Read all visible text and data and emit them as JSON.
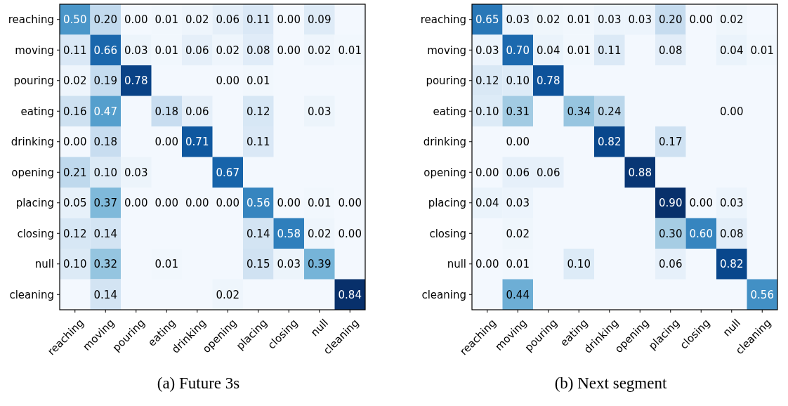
{
  "chart_data": [
    {
      "type": "heatmap",
      "title": "(a) Future 3s",
      "categories": [
        "reaching",
        "moving",
        "pouring",
        "eating",
        "drinking",
        "opening",
        "placing",
        "closing",
        "null",
        "cleaning"
      ],
      "y_categories": [
        "reaching",
        "moving",
        "pouring",
        "eating",
        "drinking",
        "opening",
        "placing",
        "closing",
        "null",
        "cleaning"
      ],
      "cells": [
        [
          0.5,
          0.2,
          0.0,
          0.01,
          0.02,
          0.06,
          0.11,
          0.0,
          0.09,
          null
        ],
        [
          0.11,
          0.66,
          0.03,
          0.01,
          0.06,
          0.02,
          0.08,
          0.0,
          0.02,
          0.01
        ],
        [
          0.02,
          0.19,
          0.78,
          null,
          null,
          0.0,
          0.01,
          null,
          null,
          null
        ],
        [
          0.16,
          0.47,
          null,
          0.18,
          0.06,
          null,
          0.12,
          null,
          0.03,
          null
        ],
        [
          0.0,
          0.18,
          null,
          0.0,
          0.71,
          null,
          0.11,
          null,
          null,
          null
        ],
        [
          0.21,
          0.1,
          0.03,
          null,
          null,
          0.67,
          null,
          null,
          null,
          null
        ],
        [
          0.05,
          0.37,
          0.0,
          0.0,
          0.0,
          0.0,
          0.56,
          0.0,
          0.01,
          0.0
        ],
        [
          0.12,
          0.14,
          null,
          null,
          null,
          null,
          0.14,
          0.58,
          0.02,
          0.0
        ],
        [
          0.1,
          0.32,
          null,
          0.01,
          null,
          null,
          0.15,
          0.03,
          0.39,
          null
        ],
        [
          null,
          0.14,
          null,
          null,
          null,
          0.02,
          null,
          null,
          null,
          0.84
        ]
      ],
      "cell_labels": [
        [
          "0.50",
          "0.20",
          "0.00",
          "0.01",
          "0.02",
          "0.06",
          "0.11",
          "0.00",
          "0.09",
          null
        ],
        [
          "0.11",
          "0.66",
          "0.03",
          "0.01",
          "0.06",
          "0.02",
          "0.08",
          "0.00",
          "0.02",
          "0.01"
        ],
        [
          "0.02",
          "0.19",
          "0.78",
          null,
          null,
          "0.00",
          "0.01",
          null,
          null,
          null
        ],
        [
          "0.16",
          "0.47",
          null,
          "0.18",
          "0.06",
          null,
          "0.12",
          null,
          "0.03",
          null
        ],
        [
          "0.00",
          "0.18",
          null,
          "0.00",
          "0.71",
          null,
          "0.11",
          null,
          null,
          null
        ],
        [
          "0.21",
          "0.10",
          "0.03",
          null,
          null,
          "0.67",
          null,
          null,
          null,
          null
        ],
        [
          "0.05",
          "0.37",
          "0.00",
          "0.00",
          "0.00",
          "0.00",
          "0.56",
          "0.00",
          "0.01",
          "0.00"
        ],
        [
          "0.12",
          "0.14",
          null,
          null,
          null,
          null,
          "0.14",
          "0.58",
          "0.02",
          "0.00"
        ],
        [
          "0.10",
          "0.32",
          null,
          "0.01",
          null,
          null,
          "0.15",
          "0.03",
          "0.39",
          null
        ],
        [
          null,
          "0.14",
          null,
          null,
          null,
          "0.02",
          null,
          null,
          null,
          "0.84"
        ]
      ]
    },
    {
      "type": "heatmap",
      "title": "(b) Next segment",
      "categories": [
        "reaching",
        "moving",
        "pouring",
        "eating",
        "drinking",
        "opening",
        "placing",
        "closing",
        "null",
        "cleaning"
      ],
      "y_categories": [
        "reaching",
        "moving",
        "pouring",
        "eating",
        "drinking",
        "opening",
        "placing",
        "closing",
        "null",
        "cleaning"
      ],
      "cells": [
        [
          0.65,
          0.03,
          0.02,
          0.01,
          0.03,
          0.03,
          0.2,
          0.0,
          0.02,
          null
        ],
        [
          0.03,
          0.7,
          0.04,
          0.01,
          0.11,
          null,
          0.08,
          null,
          0.04,
          0.01
        ],
        [
          0.12,
          0.1,
          0.78,
          null,
          null,
          null,
          null,
          null,
          null,
          null
        ],
        [
          0.1,
          0.31,
          null,
          0.34,
          0.24,
          null,
          null,
          null,
          0.0,
          null
        ],
        [
          null,
          0.0,
          null,
          null,
          0.82,
          null,
          0.17,
          null,
          null,
          null
        ],
        [
          0.0,
          0.06,
          0.06,
          null,
          null,
          0.88,
          null,
          null,
          null,
          null
        ],
        [
          0.04,
          0.03,
          null,
          null,
          null,
          null,
          0.9,
          0.0,
          0.03,
          null
        ],
        [
          null,
          0.02,
          null,
          null,
          null,
          null,
          0.3,
          0.6,
          0.08,
          null
        ],
        [
          0.0,
          0.01,
          null,
          0.1,
          null,
          null,
          0.06,
          null,
          0.82,
          null
        ],
        [
          null,
          0.44,
          null,
          null,
          null,
          null,
          null,
          null,
          null,
          0.56
        ]
      ],
      "cell_labels": [
        [
          "0.65",
          "0.03",
          "0.02",
          "0.01",
          "0.03",
          "0.03",
          "0.20",
          "0.00",
          "0.02",
          null
        ],
        [
          "0.03",
          "0.70",
          "0.04",
          "0.01",
          "0.11",
          null,
          "0.08",
          null,
          "0.04",
          "0.01"
        ],
        [
          "0.12",
          "0.10",
          "0.78",
          null,
          null,
          null,
          null,
          null,
          null,
          null
        ],
        [
          "0.10",
          "0.31",
          null,
          "0.34",
          "0.24",
          null,
          null,
          null,
          "0.00",
          null
        ],
        [
          null,
          "0.00",
          null,
          null,
          "0.82",
          null,
          "0.17",
          null,
          null,
          null
        ],
        [
          "0.00",
          "0.06",
          "0.06",
          null,
          null,
          "0.88",
          null,
          null,
          null,
          null
        ],
        [
          "0.04",
          "0.03",
          null,
          null,
          null,
          null,
          "0.90",
          "0.00",
          "0.03",
          null
        ],
        [
          null,
          "0.02",
          null,
          null,
          null,
          null,
          "0.30",
          "0.60",
          "0.08",
          null
        ],
        [
          "0.00",
          "0.01",
          null,
          "0.10",
          null,
          null,
          "0.06",
          null,
          "0.82",
          null
        ],
        [
          null,
          "0.44",
          null,
          null,
          null,
          null,
          null,
          null,
          null,
          "0.56"
        ]
      ]
    }
  ]
}
